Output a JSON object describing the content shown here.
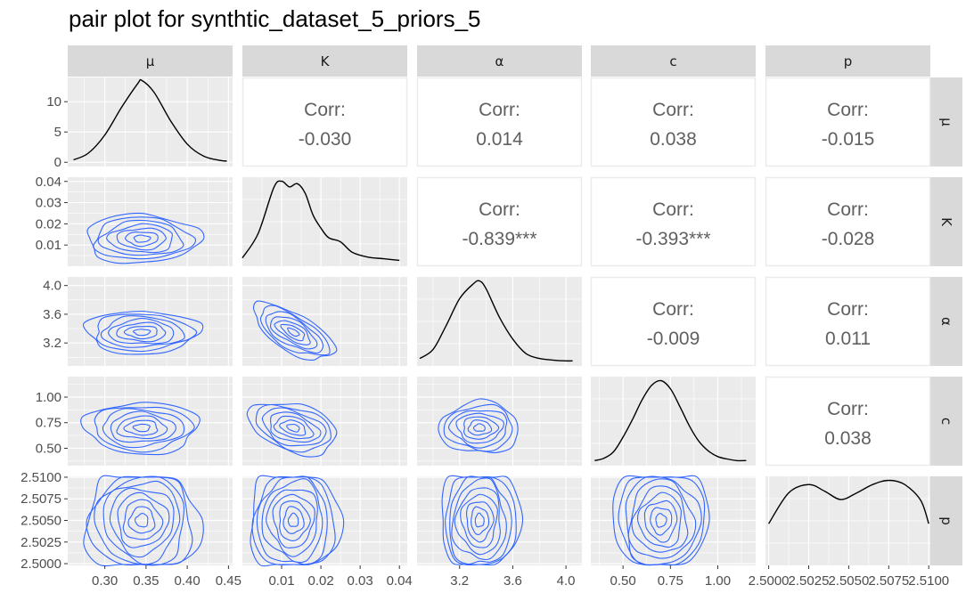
{
  "title": "pair plot for synthtic_dataset_5_priors_5",
  "colors": {
    "panel_bg": "#ebebeb",
    "grid": "#ffffff",
    "strip_bg": "#d9d9d9",
    "contour": "#3366ff",
    "density": "#000000",
    "corr_text": "#606060"
  },
  "chart_data": {
    "type": "pair_plot",
    "variables": [
      "μ",
      "K",
      "α",
      "c",
      "p"
    ],
    "diagonal_ylabels": {
      "ticks": [
        0,
        5,
        10
      ]
    },
    "axes": [
      {
        "name": "μ",
        "range": [
          0.255,
          0.455
        ],
        "ticks": [
          0.3,
          0.35,
          0.4,
          0.45
        ],
        "tick_labels": [
          "0.30",
          "0.35",
          "0.40",
          "0.45"
        ],
        "mean": 0.345,
        "sd": 0.03
      },
      {
        "name": "K",
        "range": [
          0.0,
          0.042
        ],
        "ticks": [
          0.01,
          0.02,
          0.03,
          0.04
        ],
        "tick_labels": [
          "0.01",
          "0.02",
          "0.03",
          "0.04"
        ],
        "mean": 0.013,
        "sd": 0.005
      },
      {
        "name": "α",
        "range": [
          2.88,
          4.12
        ],
        "ticks": [
          3.2,
          3.6,
          4.0
        ],
        "tick_labels": [
          "3.2",
          "3.6",
          "4.0"
        ],
        "mean": 3.35,
        "sd": 0.13
      },
      {
        "name": "c",
        "range": [
          0.33,
          1.2
        ],
        "ticks": [
          0.5,
          0.75,
          1.0
        ],
        "tick_labels": [
          "0.50",
          "0.75",
          "1.00"
        ],
        "mean": 0.7,
        "sd": 0.11
      },
      {
        "name": "p",
        "range": [
          2.4998,
          2.5101
        ],
        "ticks": [
          2.5,
          2.5025,
          2.505,
          2.5075,
          2.51
        ],
        "tick_labels": [
          "2.5000",
          "2.5025",
          "2.5050",
          "2.5075",
          "2.5100"
        ],
        "mean": 2.505,
        "sd": 0.003
      }
    ],
    "correlations": [
      {
        "row": 0,
        "col": 1,
        "label": "Corr:",
        "value": "-0.030"
      },
      {
        "row": 0,
        "col": 2,
        "label": "Corr:",
        "value": "0.014"
      },
      {
        "row": 0,
        "col": 3,
        "label": "Corr:",
        "value": "0.038"
      },
      {
        "row": 0,
        "col": 4,
        "label": "Corr:",
        "value": "-0.015"
      },
      {
        "row": 1,
        "col": 2,
        "label": "Corr:",
        "value": "-0.839***"
      },
      {
        "row": 1,
        "col": 3,
        "label": "Corr:",
        "value": "-0.393***"
      },
      {
        "row": 1,
        "col": 4,
        "label": "Corr:",
        "value": "-0.028"
      },
      {
        "row": 2,
        "col": 3,
        "label": "Corr:",
        "value": "-0.009"
      },
      {
        "row": 2,
        "col": 4,
        "label": "Corr:",
        "value": "0.011"
      },
      {
        "row": 3,
        "col": 4,
        "label": "Corr:",
        "value": "0.038"
      }
    ],
    "densities": [
      {
        "var": "μ",
        "x": [
          0.262,
          0.28,
          0.3,
          0.32,
          0.34,
          0.345,
          0.36,
          0.38,
          0.4,
          0.42,
          0.44,
          0.448
        ],
        "y": [
          0.4,
          1.5,
          4.5,
          9.0,
          13.0,
          13.5,
          11.5,
          6.8,
          3.0,
          1.0,
          0.3,
          0.2
        ]
      },
      {
        "var": "K",
        "x": [
          0.0,
          0.004,
          0.008,
          0.01,
          0.012,
          0.014,
          0.016,
          0.018,
          0.02,
          0.022,
          0.025,
          0.028,
          0.032,
          0.036,
          0.04
        ],
        "y": [
          0.05,
          0.35,
          0.92,
          1.0,
          0.93,
          0.97,
          0.85,
          0.58,
          0.42,
          0.3,
          0.25,
          0.12,
          0.06,
          0.04,
          0.02
        ]
      },
      {
        "var": "α",
        "x": [
          2.9,
          3.0,
          3.1,
          3.2,
          3.3,
          3.35,
          3.4,
          3.5,
          3.6,
          3.7,
          3.8,
          3.9,
          4.0,
          4.05
        ],
        "y": [
          0.04,
          0.15,
          0.45,
          0.78,
          0.96,
          1.0,
          0.9,
          0.55,
          0.28,
          0.1,
          0.04,
          0.02,
          0.01,
          0.01
        ]
      },
      {
        "var": "c",
        "x": [
          0.35,
          0.4,
          0.45,
          0.5,
          0.55,
          0.6,
          0.65,
          0.7,
          0.75,
          0.8,
          0.85,
          0.9,
          0.95,
          1.0,
          1.05,
          1.1,
          1.15
        ],
        "y": [
          0.01,
          0.04,
          0.12,
          0.3,
          0.52,
          0.76,
          0.94,
          1.0,
          0.9,
          0.68,
          0.44,
          0.25,
          0.13,
          0.06,
          0.03,
          0.01,
          0.01
        ]
      },
      {
        "var": "p",
        "x": [
          2.5,
          2.50125,
          2.5025,
          2.5035,
          2.5045,
          2.5055,
          2.5065,
          2.5075,
          2.5085,
          2.5095,
          2.51
        ],
        "y": [
          0.45,
          0.82,
          0.92,
          0.84,
          0.74,
          0.82,
          0.92,
          0.97,
          0.92,
          0.73,
          0.45
        ]
      }
    ]
  }
}
